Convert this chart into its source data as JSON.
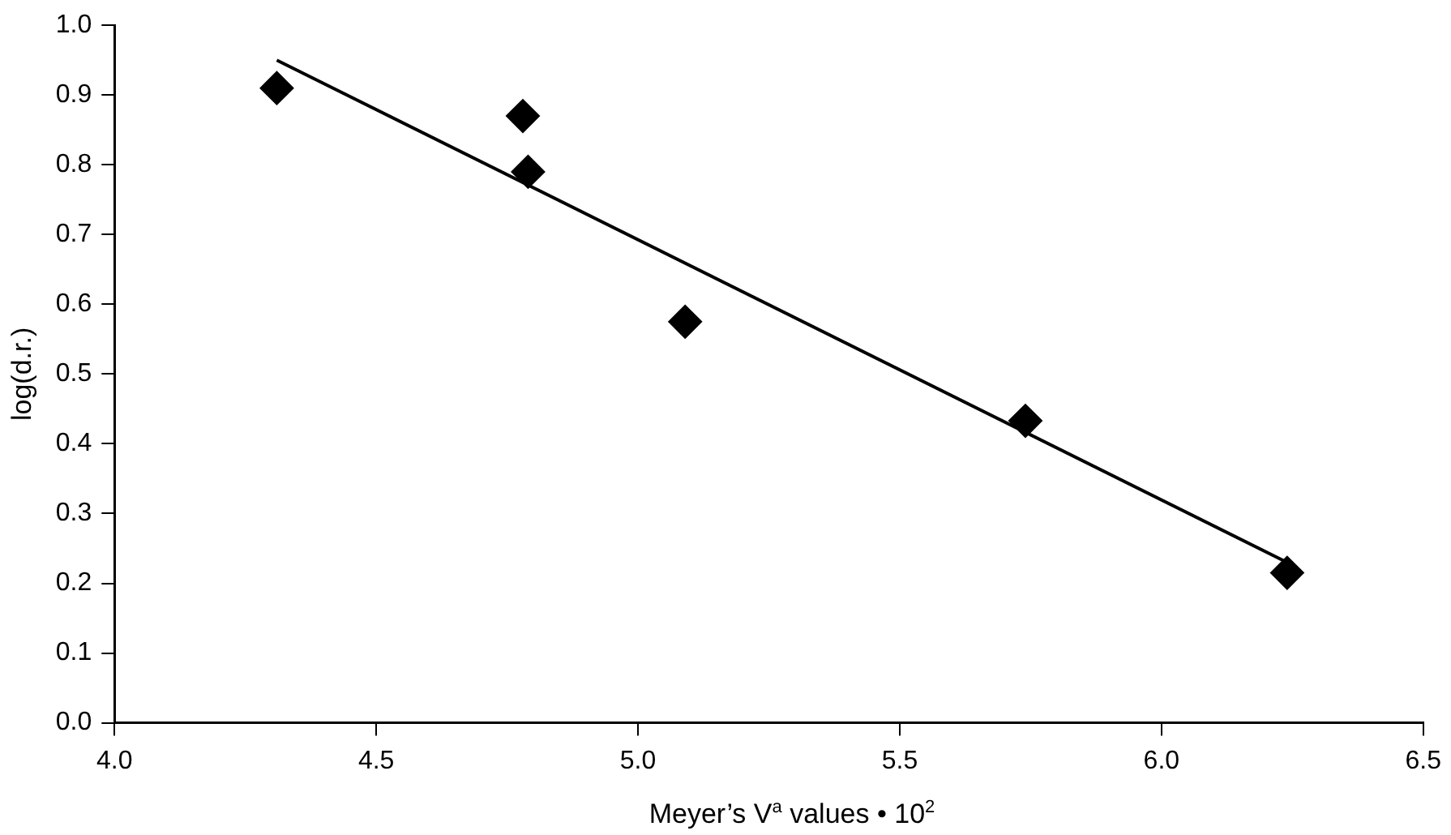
{
  "chart_data": {
    "type": "scatter",
    "ylabel": "log(d.r.)",
    "xlabel": "Meyer’s V$^{a}$ values • 10$^{2}$",
    "xlim": [
      4.0,
      6.5
    ],
    "xticks": [
      {
        "value": 4.0,
        "label": "4.0"
      },
      {
        "value": 4.5,
        "label": "4.5"
      },
      {
        "value": 5.0,
        "label": "5.0"
      },
      {
        "value": 5.5,
        "label": "5.5"
      },
      {
        "value": 6.0,
        "label": "6.0"
      },
      {
        "value": 6.5,
        "label": "6.5"
      }
    ],
    "ylim": [
      0.0,
      1.0
    ],
    "yticks": [
      {
        "value": 0.0,
        "label": "0.0"
      },
      {
        "value": 0.1,
        "label": "0.1"
      },
      {
        "value": 0.2,
        "label": "0.2"
      },
      {
        "value": 0.3,
        "label": "0.3"
      },
      {
        "value": 0.4,
        "label": "0.4"
      },
      {
        "value": 0.5,
        "label": "0.5"
      },
      {
        "value": 0.6,
        "label": "0.6"
      },
      {
        "value": 0.7,
        "label": "0.7"
      },
      {
        "value": 0.8,
        "label": "0.8"
      },
      {
        "value": 0.9,
        "label": "0.9"
      },
      {
        "value": 1.0,
        "label": "1.0"
      }
    ],
    "grid": false,
    "legend": false,
    "series": [
      {
        "color": "#000000",
        "marker": "diamond",
        "x": [
          4.31,
          4.78,
          4.79,
          5.09,
          5.74,
          6.24
        ],
        "values": [
          0.91,
          0.87,
          0.79,
          0.575,
          0.433,
          0.215
        ]
      },
      {
        "type": "line",
        "marker": "none",
        "color": "#000000",
        "x": [
          4.31,
          6.24
        ],
        "values": [
          0.95,
          0.23
        ]
      }
    ]
  }
}
